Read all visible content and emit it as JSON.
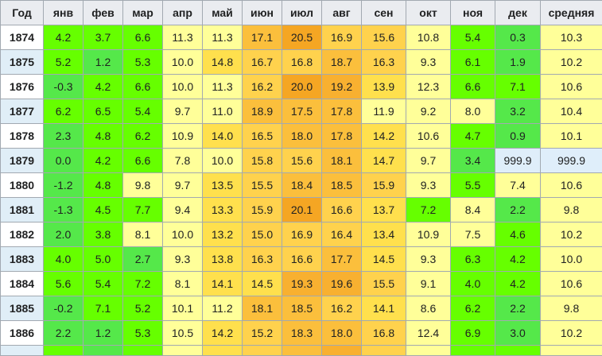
{
  "headers": [
    "Год",
    "янв",
    "фев",
    "мар",
    "апр",
    "май",
    "июн",
    "июл",
    "авг",
    "сен",
    "окт",
    "ноя",
    "дек",
    "средняя"
  ],
  "rows": [
    {
      "year": "1874",
      "values": [
        "4.2",
        "3.7",
        "6.6",
        "11.3",
        "11.3",
        "17.1",
        "20.5",
        "16.9",
        "15.6",
        "10.8",
        "5.4",
        "0.3",
        "10.3"
      ]
    },
    {
      "year": "1875",
      "values": [
        "5.2",
        "1.2",
        "5.3",
        "10.0",
        "14.8",
        "16.7",
        "16.8",
        "18.7",
        "16.3",
        "9.3",
        "6.1",
        "1.9",
        "10.2"
      ]
    },
    {
      "year": "1876",
      "values": [
        "-0.3",
        "4.2",
        "6.6",
        "10.0",
        "11.3",
        "16.2",
        "20.0",
        "19.2",
        "13.9",
        "12.3",
        "6.6",
        "7.1",
        "10.6"
      ]
    },
    {
      "year": "1877",
      "values": [
        "6.2",
        "6.5",
        "5.4",
        "9.7",
        "11.0",
        "18.9",
        "17.5",
        "17.8",
        "11.9",
        "9.2",
        "8.0",
        "3.2",
        "10.4"
      ]
    },
    {
      "year": "1878",
      "values": [
        "2.3",
        "4.8",
        "6.2",
        "10.9",
        "14.0",
        "16.5",
        "18.0",
        "17.8",
        "14.2",
        "10.6",
        "4.7",
        "0.9",
        "10.1"
      ]
    },
    {
      "year": "1879",
      "values": [
        "0.0",
        "4.2",
        "6.6",
        "7.8",
        "10.0",
        "15.8",
        "15.6",
        "18.1",
        "14.7",
        "9.7",
        "3.4",
        "999.9",
        "999.9"
      ]
    },
    {
      "year": "1880",
      "values": [
        "-1.2",
        "4.8",
        "9.8",
        "9.7",
        "13.5",
        "15.5",
        "18.4",
        "18.5",
        "15.9",
        "9.3",
        "5.5",
        "7.4",
        "10.6"
      ]
    },
    {
      "year": "1881",
      "values": [
        "-1.3",
        "4.5",
        "7.7",
        "9.4",
        "13.3",
        "15.9",
        "20.1",
        "16.6",
        "13.7",
        "7.2",
        "8.4",
        "2.2",
        "9.8"
      ]
    },
    {
      "year": "1882",
      "values": [
        "2.0",
        "3.8",
        "8.1",
        "10.0",
        "13.2",
        "15.0",
        "16.9",
        "16.4",
        "13.4",
        "10.9",
        "7.5",
        "4.6",
        "10.2"
      ]
    },
    {
      "year": "1883",
      "values": [
        "4.0",
        "5.0",
        "2.7",
        "9.3",
        "13.8",
        "16.3",
        "16.6",
        "17.7",
        "14.5",
        "9.3",
        "6.3",
        "4.2",
        "10.0"
      ]
    },
    {
      "year": "1884",
      "values": [
        "5.6",
        "5.4",
        "7.2",
        "8.1",
        "14.1",
        "14.5",
        "19.3",
        "19.6",
        "15.5",
        "9.1",
        "4.0",
        "4.2",
        "10.6"
      ]
    },
    {
      "year": "1885",
      "values": [
        "-0.2",
        "7.1",
        "5.2",
        "10.1",
        "11.2",
        "18.1",
        "18.5",
        "16.2",
        "14.1",
        "8.6",
        "6.2",
        "2.2",
        "9.8"
      ]
    },
    {
      "year": "1886",
      "values": [
        "2.2",
        "1.2",
        "5.3",
        "10.5",
        "14.2",
        "15.2",
        "18.3",
        "18.0",
        "16.8",
        "12.4",
        "6.9",
        "3.0",
        "10.2"
      ]
    }
  ],
  "colors": {
    "green_bright": "#66ff00",
    "green_mid": "#55e84a",
    "yellow_pale": "#ffff99",
    "yellow": "#ffe04d",
    "orange_light": "#ffc44d",
    "orange": "#f5a623",
    "missing": "#dfeefa"
  }
}
